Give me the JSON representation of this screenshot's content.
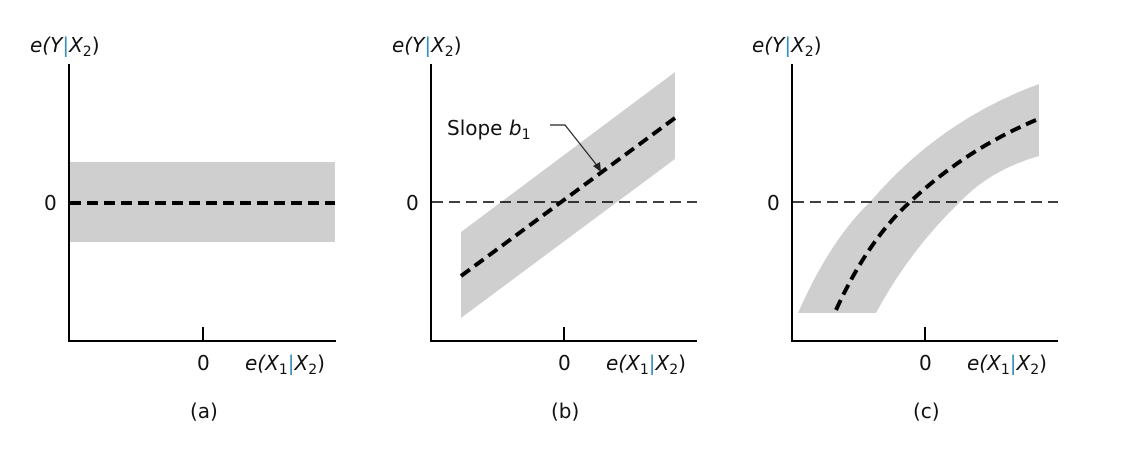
{
  "panels": [
    {
      "id": "a",
      "caption": "(a)",
      "y_label": {
        "pre": "e(Y",
        "bar": "|",
        "post": "X",
        "sub": "2",
        "close": ")"
      },
      "x_label": {
        "pre": "e(X",
        "sub1": "1",
        "bar": "|",
        "mid": "X",
        "sub2": "2",
        "close": ")"
      },
      "y_zero": "0",
      "x_zero": "0",
      "pattern": "horizontal"
    },
    {
      "id": "b",
      "caption": "(b)",
      "y_label": {
        "pre": "e(Y",
        "bar": "|",
        "post": "X",
        "sub": "2",
        "close": ")"
      },
      "x_label": {
        "pre": "e(X",
        "sub1": "1",
        "bar": "|",
        "mid": "X",
        "sub2": "2",
        "close": ")"
      },
      "y_zero": "0",
      "x_zero": "0",
      "pattern": "linear",
      "annotation": {
        "text": "Slope ",
        "var": "b",
        "sub": "1"
      }
    },
    {
      "id": "c",
      "caption": "(c)",
      "y_label": {
        "pre": "e(Y",
        "bar": "|",
        "post": "X",
        "sub": "2",
        "close": ")"
      },
      "x_label": {
        "pre": "e(X",
        "sub1": "1",
        "bar": "|",
        "mid": "X",
        "sub2": "2",
        "close": ")"
      },
      "y_zero": "0",
      "x_zero": "0",
      "pattern": "curved"
    }
  ],
  "colors": {
    "band": "#cfcfcf",
    "line": "#000000",
    "bar_accent": "#3a8fb7"
  }
}
